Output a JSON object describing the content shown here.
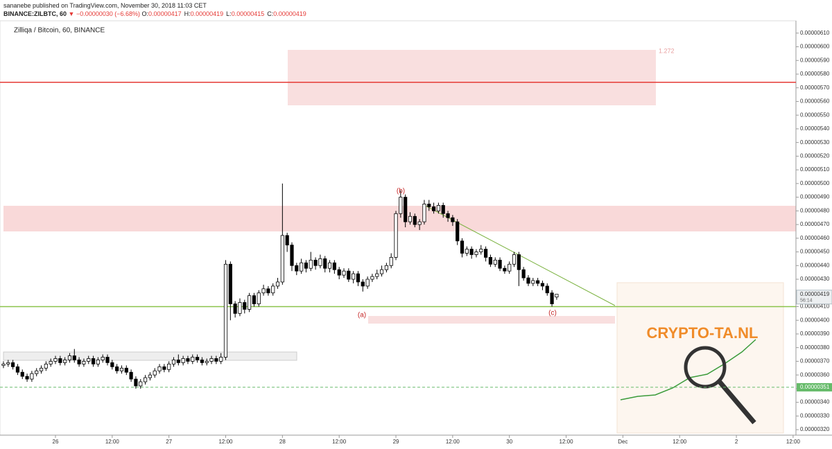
{
  "header": {
    "line1": "sananebe published on TradingView.com, November 30, 2018 11:03 CET",
    "symbol": "BINANCE:ZILBTC, 60",
    "change": "▼ −0.00000030 (−6.68%)",
    "ohlc_labels": [
      {
        "label": "O:",
        "value": "0.00000417"
      },
      {
        "label": "H:",
        "value": "0.00000419"
      },
      {
        "label": "L:",
        "value": "0.00000415"
      },
      {
        "label": "C:",
        "value": "0.00000419"
      }
    ]
  },
  "chart_data": {
    "type": "candlestick",
    "title": "Zilliqa / Bitcoin, 60, BINANCE",
    "up_color": "#ffffff",
    "down_color": "#000000",
    "x": [
      -11,
      -10,
      -9,
      -8,
      -7,
      -6,
      -5,
      -4,
      -3,
      -2,
      -1,
      0,
      1,
      2,
      3,
      4,
      5,
      6,
      7,
      8,
      9,
      10,
      11,
      12,
      13,
      14,
      15,
      16,
      17,
      18,
      19,
      20,
      21,
      22,
      23,
      24,
      25,
      26,
      27,
      28,
      29,
      30,
      31,
      32,
      33,
      34,
      35,
      36,
      37,
      38,
      39,
      40,
      41,
      42,
      43,
      44,
      45,
      46,
      47,
      48,
      49,
      50,
      51,
      52,
      53,
      54,
      55,
      56,
      57,
      58,
      59,
      60,
      61,
      62,
      63,
      64,
      65,
      66,
      67,
      68,
      69,
      70,
      71,
      72,
      73,
      74,
      75,
      76,
      77,
      78,
      79,
      80,
      81,
      82,
      83,
      84,
      85,
      86,
      87,
      88,
      89,
      90,
      91,
      92,
      93,
      94,
      95,
      96,
      97,
      98,
      99,
      100,
      101,
      102,
      103,
      104,
      105,
      106
    ],
    "ohlc": [
      [
        3.67e-06,
        3.7e-06,
        3.65e-06,
        3.68e-06
      ],
      [
        3.68e-06,
        3.71e-06,
        3.66e-06,
        3.69e-06
      ],
      [
        3.69e-06,
        3.71e-06,
        3.64e-06,
        3.66e-06
      ],
      [
        3.66e-06,
        3.68e-06,
        3.6e-06,
        3.62e-06
      ],
      [
        3.62e-06,
        3.64e-06,
        3.57e-06,
        3.59e-06
      ],
      [
        3.59e-06,
        3.61e-06,
        3.55e-06,
        3.57e-06
      ],
      [
        3.57e-06,
        3.63e-06,
        3.55e-06,
        3.61e-06
      ],
      [
        3.61e-06,
        3.65e-06,
        3.59e-06,
        3.63e-06
      ],
      [
        3.63e-06,
        3.67e-06,
        3.61e-06,
        3.65e-06
      ],
      [
        3.65e-06,
        3.7e-06,
        3.63e-06,
        3.68e-06
      ],
      [
        3.68e-06,
        3.72e-06,
        3.66e-06,
        3.7e-06
      ],
      [
        3.7e-06,
        3.74e-06,
        3.68e-06,
        3.72e-06
      ],
      [
        3.72e-06,
        3.74e-06,
        3.67e-06,
        3.69e-06
      ],
      [
        3.69e-06,
        3.73e-06,
        3.67e-06,
        3.71e-06
      ],
      [
        3.71e-06,
        3.76e-06,
        3.69e-06,
        3.74e-06
      ],
      [
        3.74e-06,
        3.79e-06,
        3.69e-06,
        3.71e-06
      ],
      [
        3.71e-06,
        3.73e-06,
        3.66e-06,
        3.68e-06
      ],
      [
        3.68e-06,
        3.72e-06,
        3.66e-06,
        3.7e-06
      ],
      [
        3.7e-06,
        3.74e-06,
        3.68e-06,
        3.72e-06
      ],
      [
        3.72e-06,
        3.74e-06,
        3.66e-06,
        3.68e-06
      ],
      [
        3.68e-06,
        3.73e-06,
        3.66e-06,
        3.71e-06
      ],
      [
        3.71e-06,
        3.75e-06,
        3.69e-06,
        3.73e-06
      ],
      [
        3.73e-06,
        3.75e-06,
        3.67e-06,
        3.69e-06
      ],
      [
        3.69e-06,
        3.71e-06,
        3.64e-06,
        3.66e-06
      ],
      [
        3.66e-06,
        3.68e-06,
        3.61e-06,
        3.63e-06
      ],
      [
        3.63e-06,
        3.67e-06,
        3.61e-06,
        3.65e-06
      ],
      [
        3.65e-06,
        3.67e-06,
        3.6e-06,
        3.62e-06
      ],
      [
        3.62e-06,
        3.64e-06,
        3.55e-06,
        3.57e-06
      ],
      [
        3.57e-06,
        3.59e-06,
        3.5e-06,
        3.52e-06
      ],
      [
        3.52e-06,
        3.57e-06,
        3.5e-06,
        3.55e-06
      ],
      [
        3.55e-06,
        3.6e-06,
        3.53e-06,
        3.58e-06
      ],
      [
        3.58e-06,
        3.62e-06,
        3.56e-06,
        3.6e-06
      ],
      [
        3.6e-06,
        3.65e-06,
        3.58e-06,
        3.63e-06
      ],
      [
        3.63e-06,
        3.68e-06,
        3.61e-06,
        3.66e-06
      ],
      [
        3.66e-06,
        3.68e-06,
        3.62e-06,
        3.64e-06
      ],
      [
        3.64e-06,
        3.7e-06,
        3.62e-06,
        3.68e-06
      ],
      [
        3.68e-06,
        3.73e-06,
        3.66e-06,
        3.71e-06
      ],
      [
        3.71e-06,
        3.75e-06,
        3.67e-06,
        3.69e-06
      ],
      [
        3.69e-06,
        3.74e-06,
        3.67e-06,
        3.72e-06
      ],
      [
        3.72e-06,
        3.74e-06,
        3.68e-06,
        3.7e-06
      ],
      [
        3.7e-06,
        3.75e-06,
        3.68e-06,
        3.73e-06
      ],
      [
        3.73e-06,
        3.75e-06,
        3.69e-06,
        3.71e-06
      ],
      [
        3.71e-06,
        3.73e-06,
        3.67e-06,
        3.69e-06
      ],
      [
        3.69e-06,
        3.72e-06,
        3.67e-06,
        3.7e-06
      ],
      [
        3.7e-06,
        3.74e-06,
        3.68e-06,
        3.72e-06
      ],
      [
        3.72e-06,
        3.74e-06,
        3.68e-06,
        3.7e-06
      ],
      [
        3.7e-06,
        3.76e-06,
        3.68e-06,
        3.73e-06
      ],
      [
        3.73e-06,
        4.44e-06,
        3.71e-06,
        4.41e-06
      ],
      [
        4.41e-06,
        4.43e-06,
        4e-06,
        4.12e-06
      ],
      [
        4.12e-06,
        4.14e-06,
        4.02e-06,
        4.05e-06
      ],
      [
        4.05e-06,
        4.16e-06,
        4.03e-06,
        4.13e-06
      ],
      [
        4.13e-06,
        4.15e-06,
        4.05e-06,
        4.08e-06
      ],
      [
        4.08e-06,
        4.2e-06,
        4.06e-06,
        4.18e-06
      ],
      [
        4.18e-06,
        4.2e-06,
        4.1e-06,
        4.12e-06
      ],
      [
        4.12e-06,
        4.22e-06,
        4.1e-06,
        4.2e-06
      ],
      [
        4.2e-06,
        4.26e-06,
        4.18e-06,
        4.23e-06
      ],
      [
        4.23e-06,
        4.25e-06,
        4.18e-06,
        4.2e-06
      ],
      [
        4.2e-06,
        4.27e-06,
        4.18e-06,
        4.25e-06
      ],
      [
        4.25e-06,
        4.31e-06,
        4.23e-06,
        4.28e-06
      ],
      [
        4.28e-06,
        5e-06,
        4.26e-06,
        4.62e-06
      ],
      [
        4.62e-06,
        4.64e-06,
        4.5e-06,
        4.55e-06
      ],
      [
        4.55e-06,
        4.57e-06,
        4.36e-06,
        4.4e-06
      ],
      [
        4.4e-06,
        4.42e-06,
        4.33e-06,
        4.36e-06
      ],
      [
        4.36e-06,
        4.45e-06,
        4.34e-06,
        4.42e-06
      ],
      [
        4.42e-06,
        4.44e-06,
        4.35e-06,
        4.38e-06
      ],
      [
        4.38e-06,
        4.5e-06,
        4.36e-06,
        4.44e-06
      ],
      [
        4.44e-06,
        4.46e-06,
        4.37e-06,
        4.4e-06
      ],
      [
        4.4e-06,
        4.48e-06,
        4.38e-06,
        4.45e-06
      ],
      [
        4.45e-06,
        4.47e-06,
        4.35e-06,
        4.38e-06
      ],
      [
        4.38e-06,
        4.44e-06,
        4.35e-06,
        4.42e-06
      ],
      [
        4.42e-06,
        4.44e-06,
        4.34e-06,
        4.37e-06
      ],
      [
        4.37e-06,
        4.39e-06,
        4.3e-06,
        4.33e-06
      ],
      [
        4.33e-06,
        4.38e-06,
        4.31e-06,
        4.36e-06
      ],
      [
        4.36e-06,
        4.38e-06,
        4.28e-06,
        4.3e-06
      ],
      [
        4.3e-06,
        4.36e-06,
        4.27e-06,
        4.34e-06
      ],
      [
        4.34e-06,
        4.36e-06,
        4.25e-06,
        4.28e-06
      ],
      [
        4.28e-06,
        4.3e-06,
        4.21e-06,
        4.25e-06
      ],
      [
        4.25e-06,
        4.32e-06,
        4.23e-06,
        4.3e-06
      ],
      [
        4.3e-06,
        4.34e-06,
        4.28e-06,
        4.32e-06
      ],
      [
        4.32e-06,
        4.37e-06,
        4.3e-06,
        4.34e-06
      ],
      [
        4.34e-06,
        4.4e-06,
        4.32e-06,
        4.37e-06
      ],
      [
        4.37e-06,
        4.42e-06,
        4.35e-06,
        4.4e-06
      ],
      [
        4.4e-06,
        4.49e-06,
        4.38e-06,
        4.46e-06
      ],
      [
        4.46e-06,
        4.8e-06,
        4.44e-06,
        4.78e-06
      ],
      [
        4.78e-06,
        4.95e-06,
        4.75e-06,
        4.9e-06
      ],
      [
        4.9e-06,
        4.92e-06,
        4.68e-06,
        4.72e-06
      ],
      [
        4.72e-06,
        4.79e-06,
        4.7e-06,
        4.76e-06
      ],
      [
        4.76e-06,
        4.78e-06,
        4.68e-06,
        4.7e-06
      ],
      [
        4.7e-06,
        4.74e-06,
        4.66e-06,
        4.72e-06
      ],
      [
        4.72e-06,
        4.88e-06,
        4.7e-06,
        4.85e-06
      ],
      [
        4.85e-06,
        4.88e-06,
        4.8e-06,
        4.83e-06
      ],
      [
        4.83e-06,
        4.86e-06,
        4.78e-06,
        4.8e-06
      ],
      [
        4.8e-06,
        4.86e-06,
        4.78e-06,
        4.84e-06
      ],
      [
        4.84e-06,
        4.86e-06,
        4.75e-06,
        4.78e-06
      ],
      [
        4.78e-06,
        4.8e-06,
        4.72e-06,
        4.75e-06
      ],
      [
        4.75e-06,
        4.77e-06,
        4.69e-06,
        4.72e-06
      ],
      [
        4.72e-06,
        4.74e-06,
        4.55e-06,
        4.58e-06
      ],
      [
        4.58e-06,
        4.6e-06,
        4.46e-06,
        4.49e-06
      ],
      [
        4.49e-06,
        4.54e-06,
        4.47e-06,
        4.52e-06
      ],
      [
        4.52e-06,
        4.54e-06,
        4.45e-06,
        4.48e-06
      ],
      [
        4.48e-06,
        4.52e-06,
        4.46e-06,
        4.5e-06
      ],
      [
        4.5e-06,
        4.55e-06,
        4.48e-06,
        4.52e-06
      ],
      [
        4.52e-06,
        4.54e-06,
        4.43e-06,
        4.46e-06
      ],
      [
        4.46e-06,
        4.48e-06,
        4.39e-06,
        4.41e-06
      ],
      [
        4.41e-06,
        4.46e-06,
        4.39e-06,
        4.44e-06
      ],
      [
        4.44e-06,
        4.46e-06,
        4.36e-06,
        4.38e-06
      ],
      [
        4.38e-06,
        4.4e-06,
        4.34e-06,
        4.36e-06
      ],
      [
        4.36e-06,
        4.43e-06,
        4.34e-06,
        4.41e-06
      ],
      [
        4.41e-06,
        4.5e-06,
        4.39e-06,
        4.48e-06
      ],
      [
        4.48e-06,
        4.5e-06,
        4.25e-06,
        4.37e-06
      ],
      [
        4.37e-06,
        4.39e-06,
        4.29e-06,
        4.31e-06
      ],
      [
        4.31e-06,
        4.33e-06,
        4.25e-06,
        4.27e-06
      ],
      [
        4.27e-06,
        4.31e-06,
        4.25e-06,
        4.29e-06
      ],
      [
        4.29e-06,
        4.31e-06,
        4.25e-06,
        4.27e-06
      ],
      [
        4.27e-06,
        4.29e-06,
        4.22e-06,
        4.25e-06
      ],
      [
        4.25e-06,
        4.27e-06,
        4.18e-06,
        4.2e-06
      ],
      [
        4.2e-06,
        4.22e-06,
        4.1e-06,
        4.12e-06
      ],
      [
        4.17e-06,
        4.19e-06,
        4.15e-06,
        4.19e-06
      ]
    ],
    "xlim": [
      -11.73,
      156.6
    ],
    "xticks": [
      {
        "value": 0,
        "label": "26"
      },
      {
        "value": 12,
        "label": "12:00"
      },
      {
        "value": 24,
        "label": "27"
      },
      {
        "value": 36,
        "label": "12:00"
      },
      {
        "value": 48,
        "label": "28"
      },
      {
        "value": 60,
        "label": "12:00"
      },
      {
        "value": 72,
        "label": "29"
      },
      {
        "value": 84,
        "label": "12:00"
      },
      {
        "value": 96,
        "label": "30"
      },
      {
        "value": 108,
        "label": "12:00"
      },
      {
        "value": 120,
        "label": "Dec"
      },
      {
        "value": 132,
        "label": "12:00"
      },
      {
        "value": 144,
        "label": "2"
      },
      {
        "value": 156,
        "label": "12:00"
      }
    ],
    "ylim": [
      3.16e-06,
      6.19e-06
    ],
    "yticks": [
      {
        "value": 3.2e-06,
        "label": "0.00000320"
      },
      {
        "value": 3.3e-06,
        "label": "0.00000330"
      },
      {
        "value": 3.4e-06,
        "label": "0.00000340"
      },
      {
        "value": 3.5e-06,
        "label": "0.00000350"
      },
      {
        "value": 3.6e-06,
        "label": "0.00000360"
      },
      {
        "value": 3.7e-06,
        "label": "0.00000370"
      },
      {
        "value": 3.8e-06,
        "label": "0.00000380"
      },
      {
        "value": 3.9e-06,
        "label": "0.00000390"
      },
      {
        "value": 4e-06,
        "label": "0.00000400"
      },
      {
        "value": 4.1e-06,
        "label": "0.00000410"
      },
      {
        "value": 4.2e-06,
        "label": "0.00000420"
      },
      {
        "value": 4.3e-06,
        "label": "0.00000430"
      },
      {
        "value": 4.4e-06,
        "label": "0.00000440"
      },
      {
        "value": 4.5e-06,
        "label": "0.00000450"
      },
      {
        "value": 4.6e-06,
        "label": "0.00000460"
      },
      {
        "value": 4.7e-06,
        "label": "0.00000470"
      },
      {
        "value": 4.8e-06,
        "label": "0.00000480"
      },
      {
        "value": 4.9e-06,
        "label": "0.00000490"
      },
      {
        "value": 5e-06,
        "label": "0.00000500"
      },
      {
        "value": 5.1e-06,
        "label": "0.00000510"
      },
      {
        "value": 5.2e-06,
        "label": "0.00000520"
      },
      {
        "value": 5.3e-06,
        "label": "0.00000530"
      },
      {
        "value": 5.4e-06,
        "label": "0.00000540"
      },
      {
        "value": 5.5e-06,
        "label": "0.00000550"
      },
      {
        "value": 5.6e-06,
        "label": "0.00000560"
      },
      {
        "value": 5.7e-06,
        "label": "0.00000570"
      },
      {
        "value": 5.8e-06,
        "label": "0.00000580"
      },
      {
        "value": 5.9e-06,
        "label": "0.00000590"
      },
      {
        "value": 6e-06,
        "label": "0.00000600"
      },
      {
        "value": 6.1e-06,
        "label": "0.00000610"
      }
    ],
    "levels": [
      {
        "value": 5.74e-06,
        "color": "#e53935",
        "dashed": false
      },
      {
        "value": 4.1e-06,
        "color": "#8bc34a",
        "dashed": false
      },
      {
        "value": 3.51e-06,
        "color": "#66bb6a",
        "dashed": true
      }
    ],
    "last_price": {
      "value": 4.19e-06,
      "label": "0.00000419",
      "countdown": "56:14"
    },
    "level_label": {
      "value": 3.51e-06,
      "label": "0.00000351"
    },
    "fib_label": "1.272",
    "annotations": [
      "(a)",
      "(b)",
      "(c)"
    ],
    "watermark": "CRYPTO-TA.NL"
  }
}
